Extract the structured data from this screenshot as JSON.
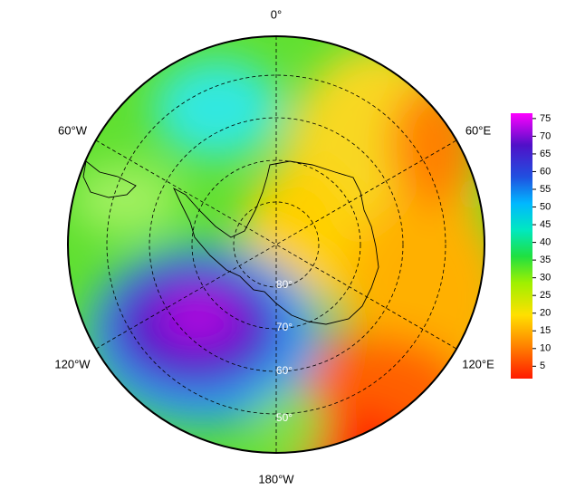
{
  "map": {
    "longitude_labels": {
      "top": "0°",
      "upper_right": "60°E",
      "lower_right": "120°E",
      "bottom": "180°W",
      "lower_left": "120°W",
      "upper_left": "60°W"
    },
    "latitude_labels": [
      "80°",
      "70°",
      "60°",
      "50°"
    ],
    "colorbar": {
      "range": [
        1.5,
        76.5
      ],
      "ticks": [
        5,
        10,
        15,
        20,
        25,
        30,
        35,
        40,
        45,
        50,
        55,
        60,
        65,
        70,
        75
      ]
    }
  }
}
